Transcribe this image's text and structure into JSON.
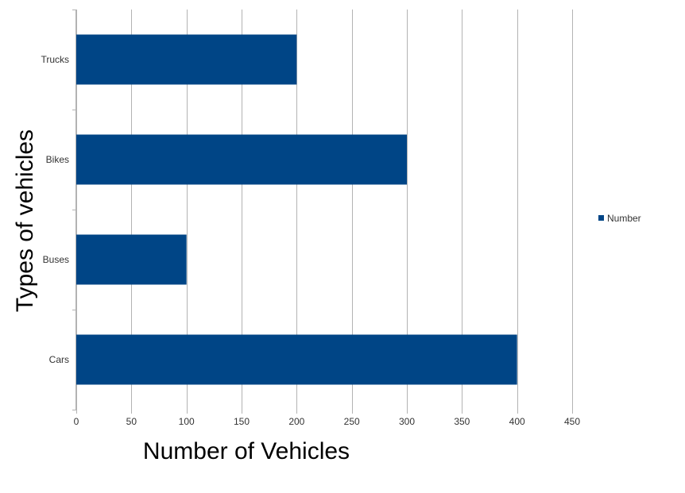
{
  "chart_data": {
    "type": "bar",
    "orientation": "horizontal",
    "categories": [
      "Cars",
      "Buses",
      "Bikes",
      "Trucks"
    ],
    "series": [
      {
        "name": "Number",
        "values": [
          400,
          100,
          300,
          200
        ],
        "color": "#004586"
      }
    ],
    "xlabel": "Number of Vehicles",
    "ylabel": "Types of vehicles",
    "xlim": [
      0,
      450
    ],
    "xticks": [
      0,
      50,
      100,
      150,
      200,
      250,
      300,
      350,
      400,
      450
    ],
    "grid": {
      "vertical": true,
      "horizontal": false
    },
    "gridColor": "#b3b3b3",
    "legend": {
      "position": "right"
    }
  }
}
